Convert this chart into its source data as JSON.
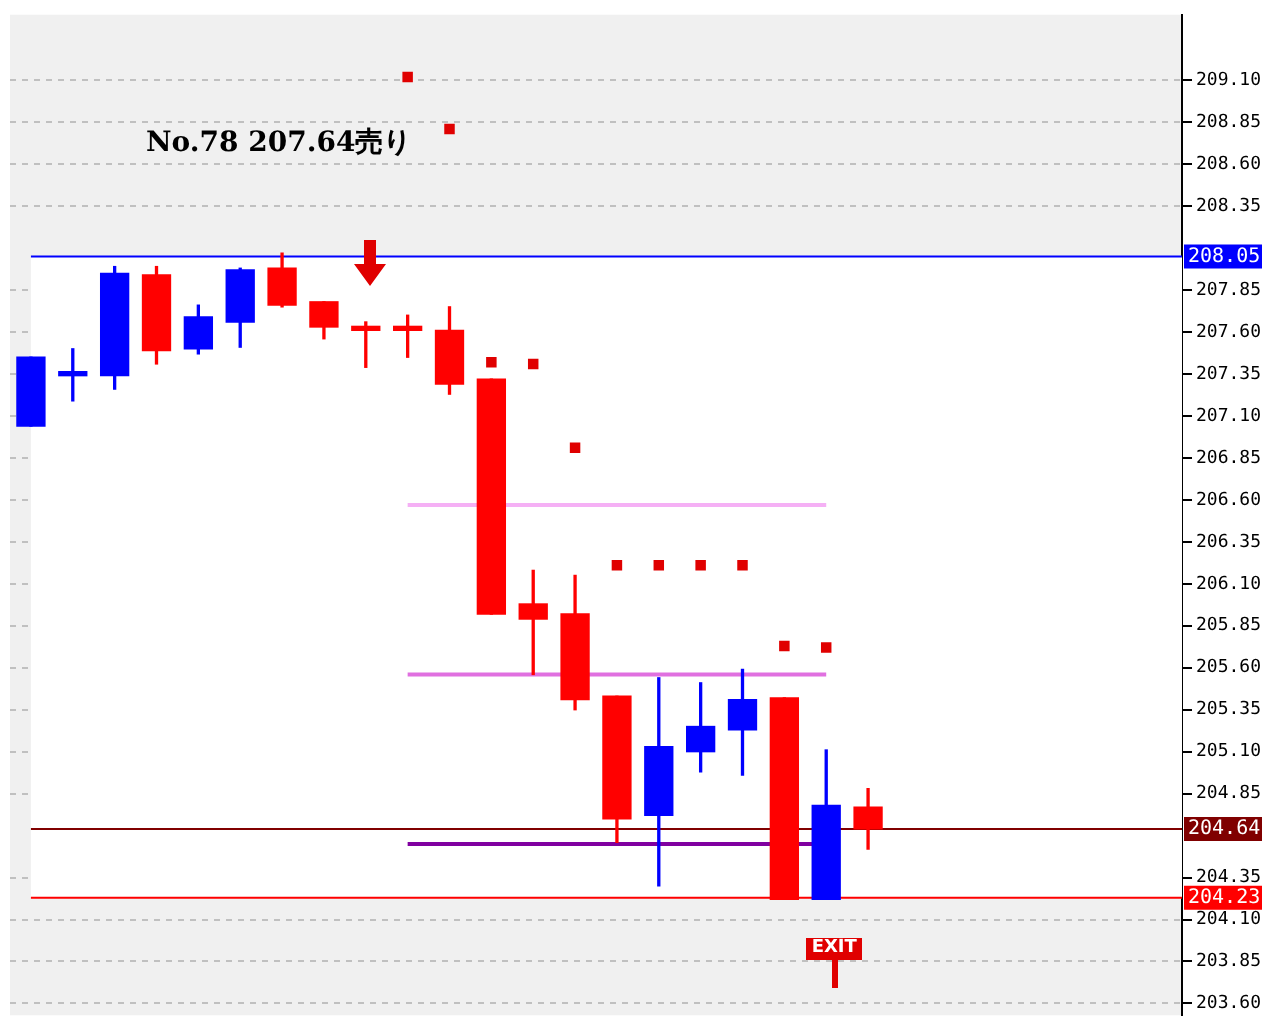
{
  "chart_data": {
    "type": "candlestick",
    "categories": [
      null,
      null,
      null,
      null,
      null,
      null,
      null,
      null,
      null,
      null,
      null,
      null,
      null,
      null,
      null,
      null,
      null,
      null,
      null,
      null,
      null,
      null,
      null,
      null,
      null,
      null,
      null,
      null
    ],
    "ohlc": [
      [
        207.04,
        207.45,
        207.04,
        207.45
      ],
      [
        207.34,
        207.5,
        207.19,
        207.36
      ],
      [
        207.34,
        207.99,
        207.26,
        207.95
      ],
      [
        207.94,
        207.99,
        207.41,
        207.49
      ],
      [
        207.5,
        207.76,
        207.47,
        207.69
      ],
      [
        207.66,
        207.98,
        207.51,
        207.97
      ],
      [
        207.98,
        208.07,
        207.75,
        207.76
      ],
      [
        207.78,
        207.78,
        207.56,
        207.63
      ],
      [
        207.63,
        207.66,
        207.39,
        207.61
      ],
      [
        207.63,
        207.7,
        207.45,
        207.61
      ],
      [
        207.61,
        207.75,
        207.23,
        207.29
      ],
      [
        207.32,
        207.32,
        205.92,
        205.92
      ],
      [
        205.98,
        206.18,
        205.56,
        205.89
      ],
      [
        205.92,
        206.15,
        205.35,
        205.41
      ],
      [
        205.43,
        205.43,
        204.56,
        204.7
      ],
      [
        204.72,
        205.54,
        204.3,
        205.13
      ],
      [
        205.1,
        205.51,
        204.98,
        205.25
      ],
      [
        205.23,
        205.59,
        204.96,
        205.41
      ],
      [
        205.42,
        205.42,
        204.22,
        204.22
      ],
      [
        204.22,
        205.11,
        204.22,
        204.78
      ],
      [
        204.77,
        204.88,
        204.52,
        204.64
      ],
      null,
      null,
      null,
      null,
      null,
      null,
      null
    ],
    "colors": [
      "#0000ff",
      "#0000ff",
      "#0000ff",
      "#ff0000",
      "#0000ff",
      "#0000ff",
      "#ff0000",
      "#ff0000",
      "#ff0000",
      "#ff0000",
      "#ff0000",
      "#ff0000",
      "#ff0000",
      "#ff0000",
      "#ff0000",
      "#0000ff",
      "#0000ff",
      "#0000ff",
      "#ff0000",
      "#0000ff",
      "#ff0000",
      null,
      null,
      null,
      null,
      null,
      null,
      null
    ],
    "series": [
      {
        "type": "scatter",
        "color": "#e00000",
        "marker": "square",
        "values": [
          null,
          null,
          null,
          null,
          null,
          null,
          null,
          null,
          null,
          209.12,
          208.81,
          207.42,
          207.41,
          206.91,
          206.21,
          206.21,
          206.21,
          206.21,
          205.73,
          205.72,
          null,
          null,
          null,
          null,
          null,
          null,
          null,
          null
        ]
      }
    ],
    "ylim": [
      203.53,
      209.49
    ],
    "yticks": [
      {
        "value": 203.6,
        "label": "203.60"
      },
      203.85,
      {
        "value": 204.1,
        "label": "204.10"
      },
      204.35,
      204.85,
      {
        "value": 205.1,
        "label": "205.10"
      },
      205.35,
      {
        "value": 205.6,
        "label": "205.60"
      },
      205.85,
      {
        "value": 206.1,
        "label": "206.10"
      },
      206.35,
      {
        "value": 206.6,
        "label": "206.60"
      },
      206.85,
      {
        "value": 207.1,
        "label": "207.10"
      },
      207.35,
      {
        "value": 207.6,
        "label": "207.60"
      },
      207.85,
      208.35,
      {
        "value": 208.6,
        "label": "208.60"
      },
      208.85,
      {
        "value": 209.1,
        "label": "209.10"
      }
    ],
    "ref_lines": [
      {
        "axis": "y",
        "value": 208.05,
        "label": "208.05",
        "color": "#0000ff"
      },
      {
        "axis": "y",
        "value": 204.64,
        "label": "204.64",
        "color": "#800000"
      },
      {
        "axis": "y",
        "value": 204.23,
        "label": "204.23",
        "color": "#ff0000"
      },
      {
        "axis": "y",
        "value": 206.57,
        "color": "#f5b0f5"
      },
      {
        "axis": "y",
        "value": 205.56,
        "color": "#e070e0"
      },
      {
        "axis": "y",
        "value": 204.55,
        "color": "#8000a0"
      }
    ],
    "bands": [
      {
        "axis": "y",
        "from": 204.23,
        "to": 208.05,
        "color": "#ffffff"
      }
    ],
    "annotations": [
      "No.78 207.64売り",
      "EXIT"
    ],
    "grid": "y",
    "legend": false,
    "tick_labels": "y"
  }
}
